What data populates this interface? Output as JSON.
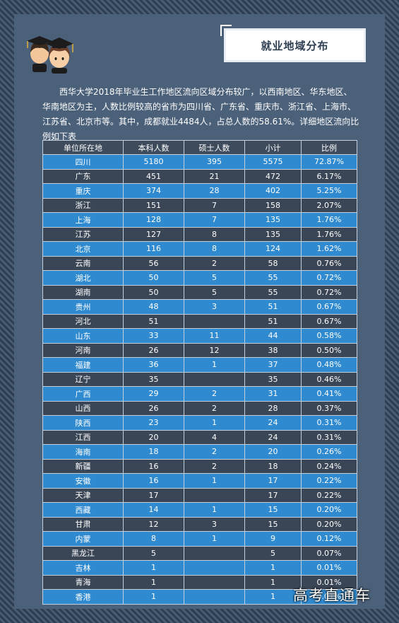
{
  "title": "就业地域分布",
  "intro": "西华大学2018年毕业生工作地区流向区域分布较广，以西南地区、华东地区、华南地区为主，人数比例较高的省市为四川省、广东省、重庆市、浙江省、上海市、江苏省、北京市等。其中，成都就业4484人，占总人数的58.61%。详细地区流向比例如下表",
  "table": {
    "headers": [
      "单位所在地",
      "本科人数",
      "硕士人数",
      "小计",
      "比例"
    ],
    "rows": [
      [
        "四川",
        "5180",
        "395",
        "5575",
        "72.87%"
      ],
      [
        "广东",
        "451",
        "21",
        "472",
        "6.17%"
      ],
      [
        "重庆",
        "374",
        "28",
        "402",
        "5.25%"
      ],
      [
        "浙江",
        "151",
        "7",
        "158",
        "2.07%"
      ],
      [
        "上海",
        "128",
        "7",
        "135",
        "1.76%"
      ],
      [
        "江苏",
        "127",
        "8",
        "135",
        "1.76%"
      ],
      [
        "北京",
        "116",
        "8",
        "124",
        "1.62%"
      ],
      [
        "云南",
        "56",
        "2",
        "58",
        "0.76%"
      ],
      [
        "湖北",
        "50",
        "5",
        "55",
        "0.72%"
      ],
      [
        "湖南",
        "50",
        "5",
        "55",
        "0.72%"
      ],
      [
        "贵州",
        "48",
        "3",
        "51",
        "0.67%"
      ],
      [
        "河北",
        "51",
        "",
        "51",
        "0.67%"
      ],
      [
        "山东",
        "33",
        "11",
        "44",
        "0.58%"
      ],
      [
        "河南",
        "26",
        "12",
        "38",
        "0.50%"
      ],
      [
        "福建",
        "36",
        "1",
        "37",
        "0.48%"
      ],
      [
        "辽宁",
        "35",
        "",
        "35",
        "0.46%"
      ],
      [
        "广西",
        "29",
        "2",
        "31",
        "0.41%"
      ],
      [
        "山西",
        "26",
        "2",
        "28",
        "0.37%"
      ],
      [
        "陕西",
        "23",
        "1",
        "24",
        "0.31%"
      ],
      [
        "江西",
        "20",
        "4",
        "24",
        "0.31%"
      ],
      [
        "海南",
        "18",
        "2",
        "20",
        "0.26%"
      ],
      [
        "新疆",
        "16",
        "2",
        "18",
        "0.24%"
      ],
      [
        "安徽",
        "16",
        "1",
        "17",
        "0.22%"
      ],
      [
        "天津",
        "17",
        "",
        "17",
        "0.22%"
      ],
      [
        "西藏",
        "14",
        "1",
        "15",
        "0.20%"
      ],
      [
        "甘肃",
        "12",
        "3",
        "15",
        "0.20%"
      ],
      [
        "内蒙",
        "8",
        "1",
        "9",
        "0.12%"
      ],
      [
        "黑龙江",
        "5",
        "",
        "5",
        "0.07%"
      ],
      [
        "吉林",
        "1",
        "",
        "1",
        "0.01%"
      ],
      [
        "青海",
        "1",
        "",
        "1",
        "0.01%"
      ],
      [
        "香港",
        "1",
        "",
        "1",
        "0.01%"
      ]
    ]
  },
  "watermark": "高考直通车",
  "colors": {
    "panel": "#4b6079",
    "row_blue": "#2f8ad0",
    "row_dark": "#3a4656",
    "header": "#3d4b5d"
  },
  "icons": [
    "graduates-avatar-icon"
  ]
}
